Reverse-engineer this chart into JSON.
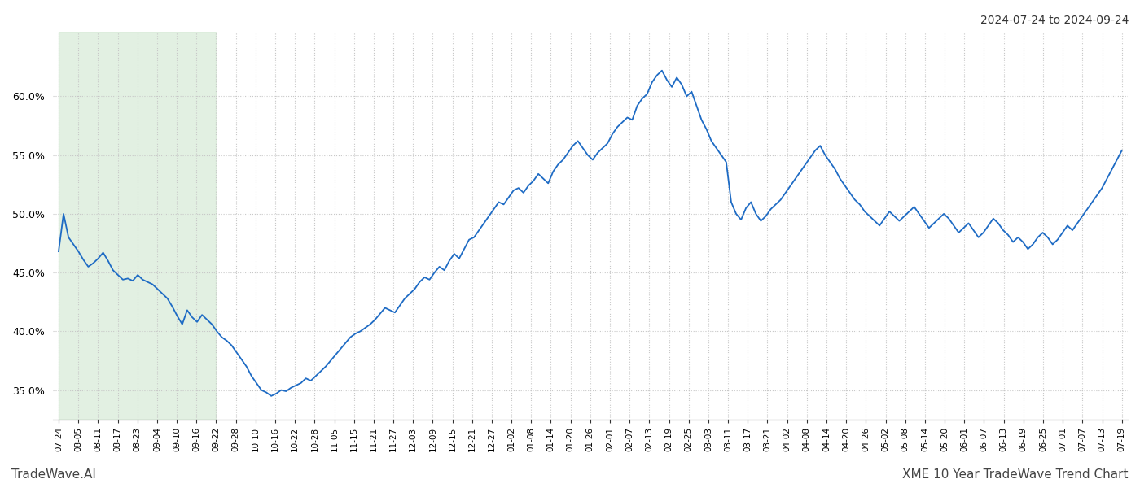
{
  "title_right": "2024-07-24 to 2024-09-24",
  "footer_left": "TradeWave.AI",
  "footer_right": "XME 10 Year TradeWave Trend Chart",
  "line_color": "#1e6bc4",
  "line_width": 1.3,
  "highlight_color": "#d6ead6",
  "highlight_alpha": 0.7,
  "background_color": "#ffffff",
  "grid_color": "#c8c8c8",
  "ylim": [
    0.325,
    0.655
  ],
  "yticks": [
    0.35,
    0.4,
    0.45,
    0.5,
    0.55,
    0.6
  ],
  "x_labels": [
    "07-24",
    "08-05",
    "08-11",
    "08-17",
    "08-23",
    "09-04",
    "09-10",
    "09-16",
    "09-22",
    "09-28",
    "10-10",
    "10-16",
    "10-22",
    "10-28",
    "11-05",
    "11-15",
    "11-21",
    "11-27",
    "12-03",
    "12-09",
    "12-15",
    "12-21",
    "12-27",
    "01-02",
    "01-08",
    "01-14",
    "01-20",
    "01-26",
    "02-01",
    "02-07",
    "02-13",
    "02-19",
    "02-25",
    "03-03",
    "03-11",
    "03-17",
    "03-21",
    "04-02",
    "04-08",
    "04-14",
    "04-20",
    "04-26",
    "05-02",
    "05-08",
    "05-14",
    "05-20",
    "06-01",
    "06-07",
    "06-13",
    "06-19",
    "06-25",
    "07-01",
    "07-07",
    "07-13",
    "07-19"
  ],
  "highlight_x_start": "07-24",
  "highlight_x_end": "09-22",
  "y_values": [
    0.468,
    0.5,
    0.48,
    0.474,
    0.468,
    0.461,
    0.455,
    0.458,
    0.462,
    0.467,
    0.46,
    0.452,
    0.448,
    0.444,
    0.445,
    0.443,
    0.448,
    0.444,
    0.442,
    0.44,
    0.436,
    0.432,
    0.428,
    0.421,
    0.413,
    0.406,
    0.418,
    0.412,
    0.408,
    0.414,
    0.41,
    0.406,
    0.4,
    0.395,
    0.392,
    0.388,
    0.382,
    0.376,
    0.37,
    0.362,
    0.356,
    0.35,
    0.348,
    0.345,
    0.347,
    0.35,
    0.349,
    0.352,
    0.354,
    0.356,
    0.36,
    0.358,
    0.362,
    0.366,
    0.37,
    0.375,
    0.38,
    0.385,
    0.39,
    0.395,
    0.398,
    0.4,
    0.403,
    0.406,
    0.41,
    0.415,
    0.42,
    0.418,
    0.416,
    0.422,
    0.428,
    0.432,
    0.436,
    0.442,
    0.446,
    0.444,
    0.45,
    0.455,
    0.452,
    0.46,
    0.466,
    0.462,
    0.47,
    0.478,
    0.48,
    0.486,
    0.492,
    0.498,
    0.504,
    0.51,
    0.508,
    0.514,
    0.52,
    0.522,
    0.518,
    0.524,
    0.528,
    0.534,
    0.53,
    0.526,
    0.536,
    0.542,
    0.546,
    0.552,
    0.558,
    0.562,
    0.556,
    0.55,
    0.546,
    0.552,
    0.556,
    0.56,
    0.568,
    0.574,
    0.578,
    0.582,
    0.58,
    0.592,
    0.598,
    0.602,
    0.612,
    0.618,
    0.622,
    0.614,
    0.608,
    0.616,
    0.61,
    0.6,
    0.604,
    0.592,
    0.58,
    0.572,
    0.562,
    0.556,
    0.55,
    0.544,
    0.51,
    0.5,
    0.495,
    0.505,
    0.51,
    0.5,
    0.494,
    0.498,
    0.504,
    0.508,
    0.512,
    0.518,
    0.524,
    0.53,
    0.536,
    0.542,
    0.548,
    0.554,
    0.558,
    0.55,
    0.544,
    0.538,
    0.53,
    0.524,
    0.518,
    0.512,
    0.508,
    0.502,
    0.498,
    0.494,
    0.49,
    0.496,
    0.502,
    0.498,
    0.494,
    0.498,
    0.502,
    0.506,
    0.5,
    0.494,
    0.488,
    0.492,
    0.496,
    0.5,
    0.496,
    0.49,
    0.484,
    0.488,
    0.492,
    0.486,
    0.48,
    0.484,
    0.49,
    0.496,
    0.492,
    0.486,
    0.482,
    0.476,
    0.48,
    0.476,
    0.47,
    0.474,
    0.48,
    0.484,
    0.48,
    0.474,
    0.478,
    0.484,
    0.49,
    0.486,
    0.492,
    0.498,
    0.504,
    0.51,
    0.516,
    0.522,
    0.53,
    0.538,
    0.546,
    0.554
  ]
}
